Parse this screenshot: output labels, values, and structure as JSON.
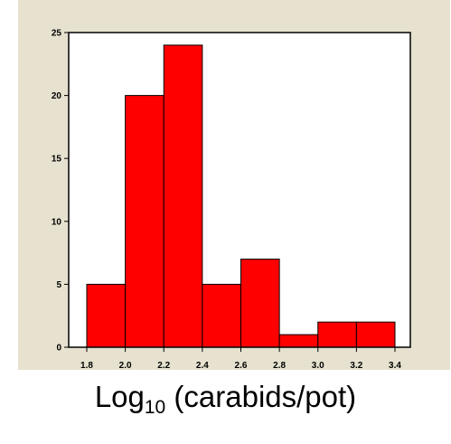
{
  "chart_data": {
    "type": "bar",
    "bins": [
      {
        "x0": 1.8,
        "x1": 2.0,
        "count": 5
      },
      {
        "x0": 2.0,
        "x1": 2.2,
        "count": 20
      },
      {
        "x0": 2.2,
        "x1": 2.4,
        "count": 24
      },
      {
        "x0": 2.4,
        "x1": 2.6,
        "count": 5
      },
      {
        "x0": 2.6,
        "x1": 2.8,
        "count": 7
      },
      {
        "x0": 2.8,
        "x1": 3.0,
        "count": 1
      },
      {
        "x0": 3.0,
        "x1": 3.2,
        "count": 2
      },
      {
        "x0": 3.2,
        "x1": 3.4,
        "count": 2
      }
    ],
    "x_ticks": [
      "1.8",
      "2.0",
      "2.2",
      "2.4",
      "2.6",
      "2.8",
      "3.0",
      "3.2",
      "3.4"
    ],
    "y_ticks": [
      "0",
      "5",
      "10",
      "15",
      "20",
      "25"
    ],
    "xlim": [
      1.8,
      3.4
    ],
    "ylim": [
      0,
      25
    ],
    "xlabel_main": "Log",
    "xlabel_sub": "10",
    "xlabel_rest": " (carabids/pot)",
    "ylabel": "",
    "grid": false,
    "bar_color": "#ff0000",
    "background_color": "#e6e2cf"
  }
}
